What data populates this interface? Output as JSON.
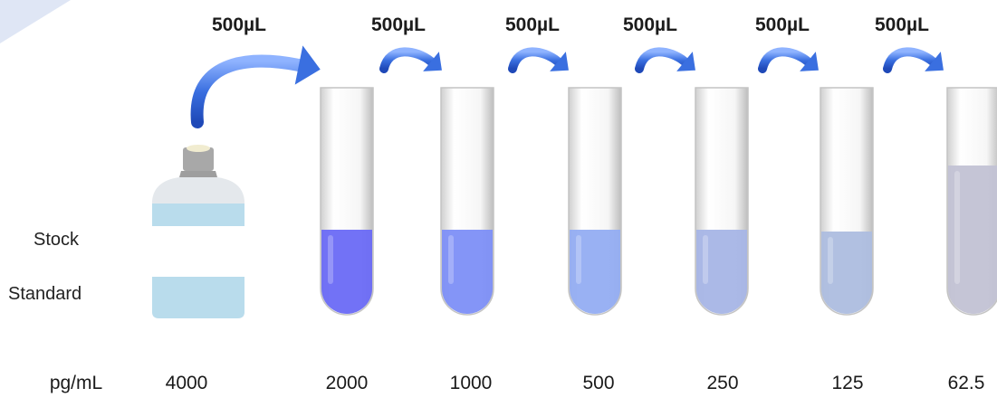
{
  "transfers": [
    {
      "volume": "500µL"
    },
    {
      "volume": "500µL"
    },
    {
      "volume": "500µL"
    },
    {
      "volume": "500µL"
    },
    {
      "volume": "500µL"
    },
    {
      "volume": "500µL"
    }
  ],
  "stock": {
    "line1": "Stock",
    "line2": "Standard"
  },
  "units": "pg/mL",
  "concentrations": [
    "4000",
    "2000",
    "1000",
    "500",
    "250",
    "125",
    "62.5"
  ],
  "colors": {
    "arrow": "#3a6fe0",
    "liquids": [
      "#6a6af5",
      "#7d8ff7",
      "#93adf2",
      "#a6b5e6",
      "#adbddf",
      "#c2c2d4"
    ],
    "bottle_band": "#b9dcec",
    "bottle_cap": "#a8a8a8"
  }
}
